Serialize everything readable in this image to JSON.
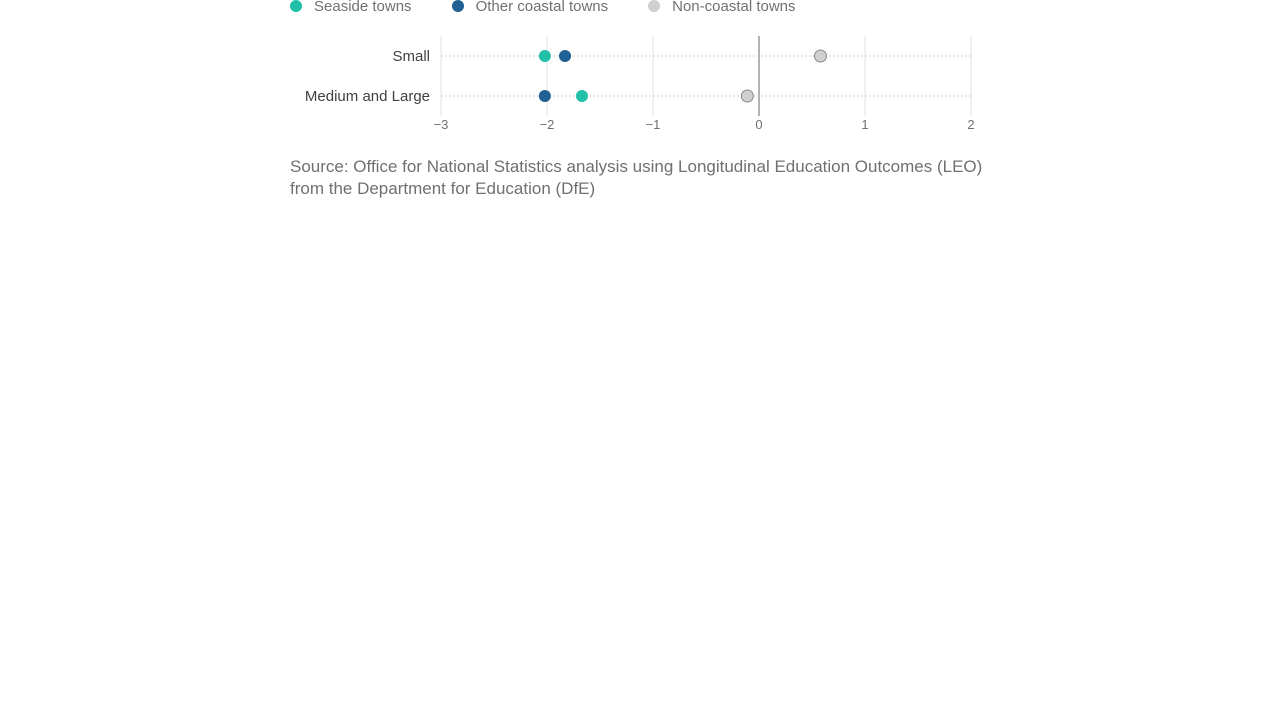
{
  "chart_data": {
    "type": "scatter",
    "categories": [
      "Small",
      "Medium and Large"
    ],
    "series": [
      {
        "name": "Seaside towns",
        "color": "#22c0a8",
        "values": [
          -2.02,
          -1.67
        ]
      },
      {
        "name": "Other coastal towns",
        "color": "#206095",
        "values": [
          -1.83,
          -2.02
        ]
      },
      {
        "name": "Non-coastal towns",
        "color": "#d0d0d0",
        "values": [
          0.58,
          -0.11
        ]
      }
    ],
    "x_ticks": [
      "−3",
      "−2",
      "−1",
      "0",
      "1",
      "2"
    ],
    "x_tick_values": [
      -3,
      -2,
      -1,
      0,
      1,
      2
    ],
    "xlim": [
      -3,
      2
    ],
    "grid": true,
    "legend": "top-left"
  },
  "source": {
    "text": "Source: Office for National Statistics analysis using Longitudinal Education Outcomes (LEO) from the Department for Education (DfE)"
  }
}
